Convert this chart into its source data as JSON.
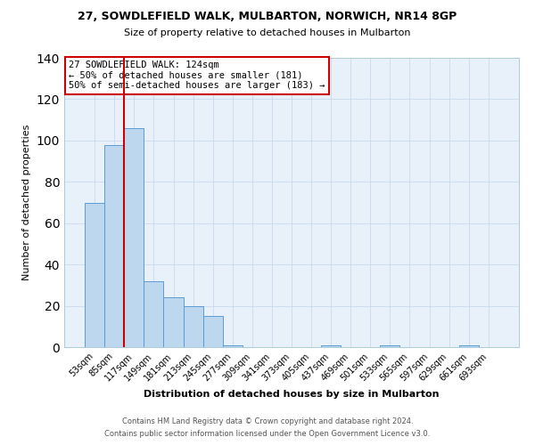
{
  "title": "27, SOWDLEFIELD WALK, MULBARTON, NORWICH, NR14 8GP",
  "subtitle": "Size of property relative to detached houses in Mulbarton",
  "xlabel": "Distribution of detached houses by size in Mulbarton",
  "ylabel": "Number of detached properties",
  "bar_labels": [
    "53sqm",
    "85sqm",
    "117sqm",
    "149sqm",
    "181sqm",
    "213sqm",
    "245sqm",
    "277sqm",
    "309sqm",
    "341sqm",
    "373sqm",
    "405sqm",
    "437sqm",
    "469sqm",
    "501sqm",
    "533sqm",
    "565sqm",
    "597sqm",
    "629sqm",
    "661sqm",
    "693sqm"
  ],
  "bar_values": [
    70,
    98,
    106,
    32,
    24,
    20,
    15,
    1,
    0,
    0,
    0,
    0,
    1,
    0,
    0,
    1,
    0,
    0,
    0,
    1,
    0
  ],
  "bar_color": "#BDD7EE",
  "bar_edge_color": "#5B9BD5",
  "bg_color": "#E8F1FA",
  "grid_color": "#C8D8EC",
  "vline_color": "#CC0000",
  "vline_x_idx": 1.5,
  "annotation_line1": "27 SOWDLEFIELD WALK: 124sqm",
  "annotation_line2": "← 50% of detached houses are smaller (181)",
  "annotation_line3": "50% of semi-detached houses are larger (183) →",
  "annotation_box_edge": "#CC0000",
  "ylim": [
    0,
    140
  ],
  "yticks": [
    0,
    20,
    40,
    60,
    80,
    100,
    120,
    140
  ],
  "footer1": "Contains HM Land Registry data © Crown copyright and database right 2024.",
  "footer2": "Contains public sector information licensed under the Open Government Licence v3.0.",
  "figsize": [
    6.0,
    5.0
  ],
  "dpi": 100
}
